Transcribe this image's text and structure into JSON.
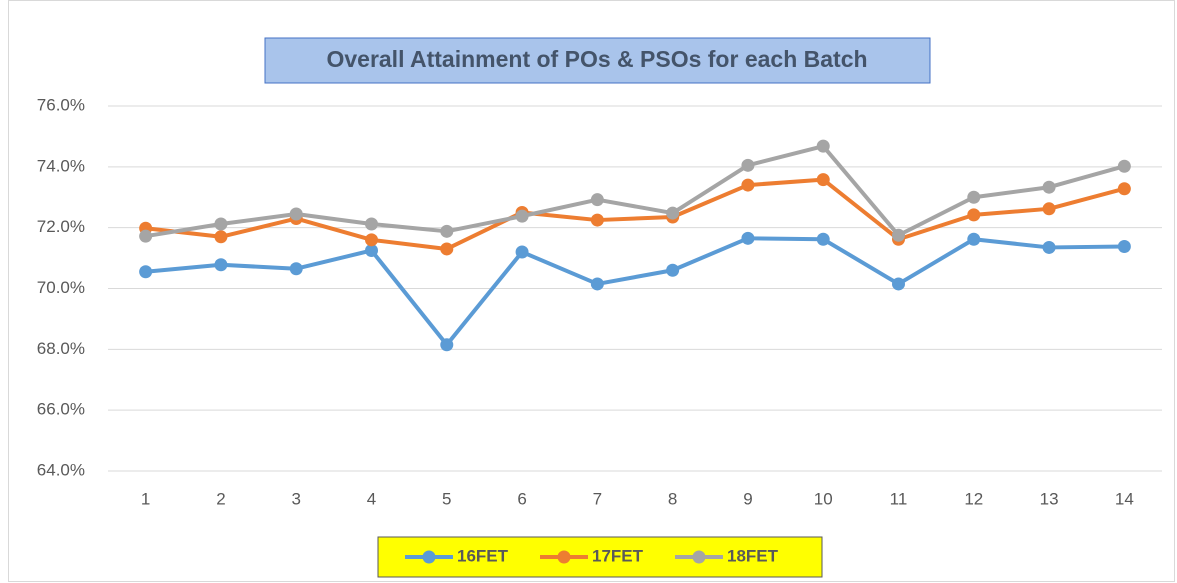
{
  "chart_data": {
    "type": "line",
    "title": "Overall Attainment of POs & PSOs for each Batch",
    "categories": [
      "1",
      "2",
      "3",
      "4",
      "5",
      "6",
      "7",
      "8",
      "9",
      "10",
      "11",
      "12",
      "13",
      "14"
    ],
    "series": [
      {
        "name": "16FET",
        "color": "#5b9bd5",
        "values": [
          70.55,
          70.78,
          70.65,
          71.25,
          68.15,
          71.2,
          70.15,
          70.6,
          71.65,
          71.62,
          70.15,
          71.62,
          71.35,
          71.38
        ]
      },
      {
        "name": "17FET",
        "color": "#ed7d31",
        "values": [
          71.98,
          71.7,
          72.3,
          71.6,
          71.3,
          72.5,
          72.25,
          72.35,
          73.4,
          73.58,
          71.62,
          72.42,
          72.62,
          73.28
        ]
      },
      {
        "name": "18FET",
        "color": "#a5a5a5",
        "values": [
          71.72,
          72.12,
          72.45,
          72.12,
          71.88,
          72.38,
          72.92,
          72.48,
          74.05,
          74.68,
          71.75,
          73.0,
          73.33,
          74.02
        ]
      }
    ],
    "ylim": [
      64,
      76
    ],
    "yticks": [
      {
        "value": 64,
        "label": "64.0%"
      },
      {
        "value": 66,
        "label": "66.0%"
      },
      {
        "value": 68,
        "label": "68.0%"
      },
      {
        "value": 70,
        "label": "70.0%"
      },
      {
        "value": 72,
        "label": "72.0%"
      },
      {
        "value": 74,
        "label": "74.0%"
      },
      {
        "value": 76,
        "label": "76.0%"
      }
    ],
    "grid": true,
    "legend": "bottom"
  }
}
